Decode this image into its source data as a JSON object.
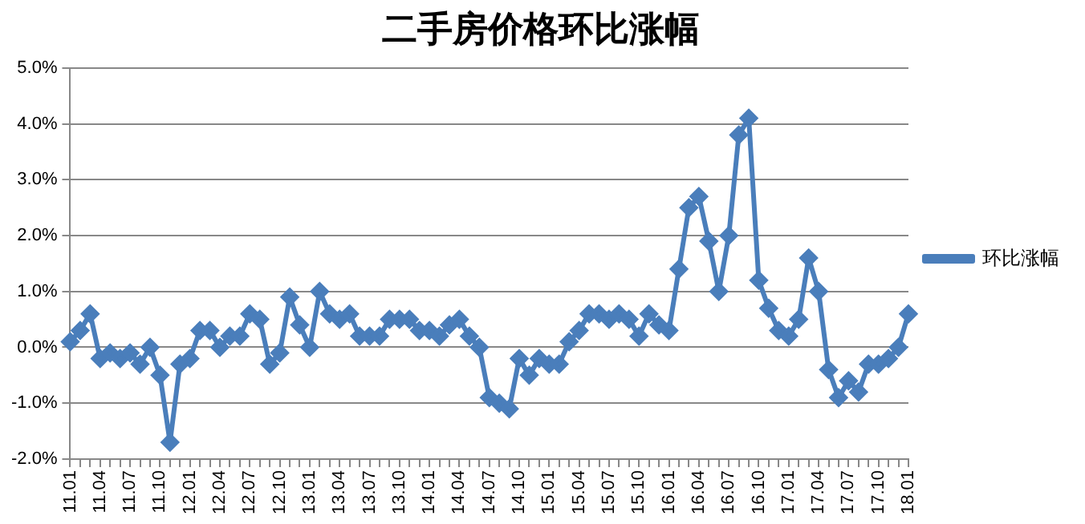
{
  "chart_data": {
    "type": "line",
    "title": "二手房价格环比涨幅",
    "categories": [
      "11.01",
      null,
      null,
      "11.04",
      null,
      null,
      "11.07",
      null,
      null,
      "11.10",
      null,
      null,
      "12.01",
      null,
      null,
      "12.04",
      null,
      null,
      "12.07",
      null,
      null,
      "12.10",
      null,
      null,
      "13.01",
      null,
      null,
      "13.04",
      null,
      null,
      "13.07",
      null,
      null,
      "13.10",
      null,
      null,
      "14.01",
      null,
      null,
      "14.04",
      null,
      null,
      "14.07",
      null,
      null,
      "14.10",
      null,
      null,
      "15.01",
      null,
      null,
      "15.04",
      null,
      null,
      "15.07",
      null,
      null,
      "15.10",
      null,
      null,
      "16.01",
      null,
      null,
      "16.04",
      null,
      null,
      "16.07",
      null,
      null,
      "16.10",
      null,
      null,
      "17.01",
      null,
      null,
      "17.04",
      null,
      null,
      "17.07",
      null,
      null,
      "17.10",
      null,
      null,
      "18.01"
    ],
    "series": [
      {
        "name": "环比涨幅",
        "color": "#4a7ebb",
        "values": [
          0.1,
          0.3,
          0.6,
          -0.2,
          -0.1,
          -0.2,
          -0.1,
          -0.3,
          0.0,
          -0.5,
          -1.7,
          -0.3,
          -0.2,
          0.3,
          0.3,
          0.0,
          0.2,
          0.2,
          0.6,
          0.5,
          -0.3,
          -0.1,
          0.9,
          0.4,
          0.0,
          1.0,
          0.6,
          0.5,
          0.6,
          0.2,
          0.2,
          0.2,
          0.5,
          0.5,
          0.5,
          0.3,
          0.3,
          0.2,
          0.4,
          0.5,
          0.2,
          0.0,
          -0.9,
          -1.0,
          -1.1,
          -0.2,
          -0.5,
          -0.2,
          -0.3,
          -0.3,
          0.1,
          0.3,
          0.6,
          0.6,
          0.5,
          0.6,
          0.5,
          0.2,
          0.6,
          0.4,
          0.3,
          1.4,
          2.5,
          2.7,
          1.9,
          1.0,
          2.0,
          3.8,
          4.1,
          1.2,
          0.7,
          0.3,
          0.2,
          0.5,
          1.6,
          1.0,
          -0.4,
          -0.9,
          -0.6,
          -0.8,
          -0.3,
          -0.3,
          -0.2,
          0.0,
          0.6
        ]
      }
    ],
    "ylim": [
      -2,
      5
    ],
    "yticks": [
      {
        "value": -2,
        "label": "-2.0%"
      },
      {
        "value": -1,
        "label": "-1.0%"
      },
      {
        "value": 0,
        "label": "0.0%"
      },
      {
        "value": 1,
        "label": "1.0%"
      },
      {
        "value": 2,
        "label": "2.0%"
      },
      {
        "value": 3,
        "label": "3.0%"
      },
      {
        "value": 4,
        "label": "4.0%"
      },
      {
        "value": 5,
        "label": "5.0%"
      }
    ],
    "grid": "y",
    "legend": "right",
    "marker": "diamond",
    "line_style": "solid"
  }
}
